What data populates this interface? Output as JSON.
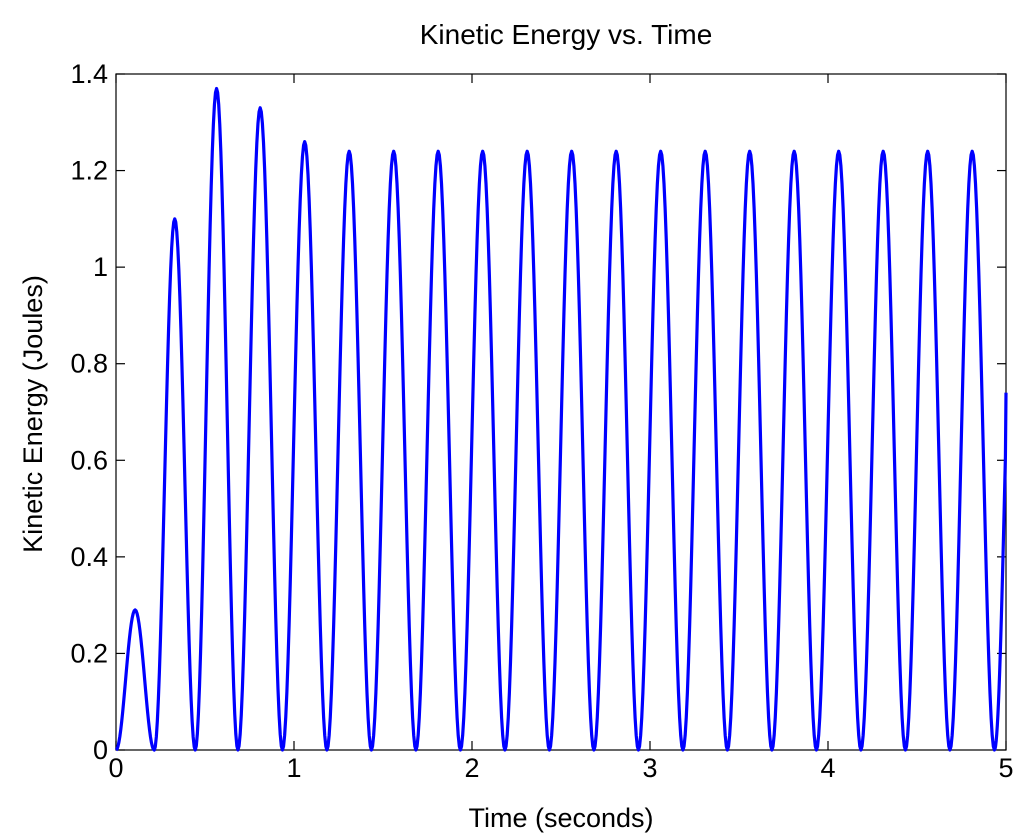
{
  "chart_data": {
    "type": "line",
    "title": "Kinetic Energy vs. Time",
    "xlabel": "Time (seconds)",
    "ylabel": "Kinetic Energy (Joules)",
    "xlim": [
      0,
      5
    ],
    "ylim": [
      0,
      1.4
    ],
    "x_ticks": [
      "0",
      "1",
      "2",
      "3",
      "4",
      "5"
    ],
    "y_ticks": [
      "0",
      "0.2",
      "0.4",
      "0.6",
      "0.8",
      "1",
      "1.2",
      "1.4"
    ],
    "grid": false,
    "legend": "none",
    "line_color": "#0000ff",
    "series": [
      {
        "peaks": [
          {
            "t": 0.12,
            "ke": 0.29
          },
          {
            "t": 0.33,
            "ke": 1.1
          },
          {
            "t": 0.56,
            "ke": 1.37
          },
          {
            "t": 0.81,
            "ke": 1.33
          },
          {
            "t": 1.06,
            "ke": 1.26
          },
          {
            "t": 1.31,
            "ke": 1.24
          },
          {
            "t": 1.56,
            "ke": 1.24
          },
          {
            "t": 1.81,
            "ke": 1.24
          },
          {
            "t": 2.06,
            "ke": 1.24
          },
          {
            "t": 2.31,
            "ke": 1.24
          },
          {
            "t": 2.56,
            "ke": 1.24
          },
          {
            "t": 2.81,
            "ke": 1.24
          },
          {
            "t": 3.06,
            "ke": 1.24
          },
          {
            "t": 3.31,
            "ke": 1.24
          },
          {
            "t": 3.56,
            "ke": 1.24
          },
          {
            "t": 3.81,
            "ke": 1.24
          },
          {
            "t": 4.06,
            "ke": 1.24
          },
          {
            "t": 4.31,
            "ke": 1.24
          },
          {
            "t": 4.56,
            "ke": 1.24
          },
          {
            "t": 4.81,
            "ke": 1.24
          }
        ],
        "zeros": [
          0,
          0.215,
          0.445,
          0.685,
          0.935,
          1.185,
          1.435,
          1.685,
          1.935,
          2.185,
          2.435,
          2.685,
          2.935,
          3.185,
          3.435,
          3.685,
          3.935,
          4.185,
          4.435,
          4.685,
          4.935
        ],
        "end": {
          "t": 5.0,
          "ke": 0.74
        }
      }
    ]
  }
}
